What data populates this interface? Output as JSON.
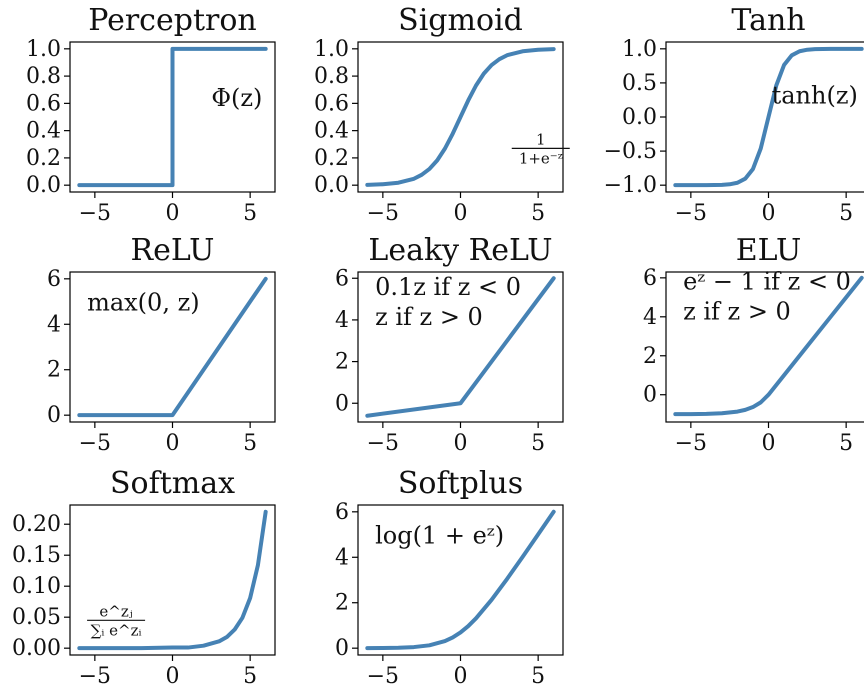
{
  "style": {
    "line_color": "#4682b4",
    "axis_color": "#000000",
    "background": "#ffffff"
  },
  "chart_data": [
    {
      "type": "line",
      "title": "Perceptron",
      "x": [
        -6,
        0,
        0,
        6
      ],
      "y": [
        0,
        0,
        1,
        1
      ],
      "xlim": [
        -6.6,
        6.6
      ],
      "ylim": [
        -0.05,
        1.05
      ],
      "xticks": [
        -5,
        0,
        5
      ],
      "xtick_labels": [
        "−5",
        "0",
        "5"
      ],
      "yticks": [
        0,
        0.2,
        0.4,
        0.6,
        0.8,
        1.0
      ],
      "ytick_labels": [
        "0.0",
        "0.2",
        "0.4",
        "0.6",
        "0.8",
        "1.0"
      ],
      "annotation": {
        "text": "Φ(z)",
        "x": 2.5,
        "y": 0.58
      },
      "grid": false,
      "legend": "none"
    },
    {
      "type": "line",
      "title": "Sigmoid",
      "x": [
        -6,
        -5,
        -4,
        -3,
        -2.5,
        -2,
        -1.5,
        -1,
        -0.5,
        0,
        0.5,
        1,
        1.5,
        2,
        2.5,
        3,
        4,
        5,
        6
      ],
      "y": [
        0.002,
        0.007,
        0.018,
        0.047,
        0.076,
        0.119,
        0.182,
        0.269,
        0.378,
        0.5,
        0.622,
        0.731,
        0.818,
        0.881,
        0.924,
        0.953,
        0.982,
        0.993,
        0.998
      ],
      "xlim": [
        -6.6,
        6.6
      ],
      "ylim": [
        -0.05,
        1.05
      ],
      "xticks": [
        -5,
        0,
        5
      ],
      "xtick_labels": [
        "−5",
        "0",
        "5"
      ],
      "yticks": [
        0,
        0.2,
        0.4,
        0.6,
        0.8,
        1.0
      ],
      "ytick_labels": [
        "0.0",
        "0.2",
        "0.4",
        "0.6",
        "0.8",
        "1.0"
      ],
      "annotation": {
        "numerator": "1",
        "denominator": "1+e⁻ᶻ",
        "x": 3.3,
        "y": 0.27
      },
      "grid": false,
      "legend": "none"
    },
    {
      "type": "line",
      "title": "Tanh",
      "x": [
        -6,
        -5,
        -4,
        -3,
        -2.5,
        -2,
        -1.5,
        -1,
        -0.5,
        0,
        0.5,
        1,
        1.5,
        2,
        2.5,
        3,
        4,
        5,
        6
      ],
      "y": [
        -1.0,
        -1.0,
        -0.999,
        -0.995,
        -0.987,
        -0.964,
        -0.905,
        -0.762,
        -0.462,
        0,
        0.462,
        0.762,
        0.905,
        0.964,
        0.987,
        0.995,
        0.999,
        1.0,
        1.0
      ],
      "xlim": [
        -6.6,
        6.6
      ],
      "ylim": [
        -1.1,
        1.1
      ],
      "xticks": [
        -5,
        0,
        5
      ],
      "xtick_labels": [
        "−5",
        "0",
        "5"
      ],
      "yticks": [
        -1.0,
        -0.5,
        0,
        0.5,
        1.0
      ],
      "ytick_labels": [
        "−1.0",
        "−0.5",
        "0.0",
        "0.5",
        "1.0"
      ],
      "annotation": {
        "text": "tanh(z)",
        "x": 0.2,
        "y": 0.2
      },
      "grid": false,
      "legend": "none"
    },
    {
      "type": "line",
      "title": "ReLU",
      "x": [
        -6,
        0,
        6
      ],
      "y": [
        0,
        0,
        6
      ],
      "xlim": [
        -6.6,
        6.6
      ],
      "ylim": [
        -0.3,
        6.3
      ],
      "xticks": [
        -5,
        0,
        5
      ],
      "xtick_labels": [
        "−5",
        "0",
        "5"
      ],
      "yticks": [
        0,
        2,
        4,
        6
      ],
      "ytick_labels": [
        "0",
        "2",
        "4",
        "6"
      ],
      "annotation": {
        "text": "max(0, z)",
        "x": -5.5,
        "y": 4.6
      },
      "grid": false,
      "legend": "none"
    },
    {
      "type": "line",
      "title": "Leaky ReLU",
      "x": [
        -6,
        0,
        6
      ],
      "y": [
        -0.6,
        0,
        6
      ],
      "xlim": [
        -6.6,
        6.6
      ],
      "ylim": [
        -0.9,
        6.3
      ],
      "xticks": [
        -5,
        0,
        5
      ],
      "xtick_labels": [
        "−5",
        "0",
        "5"
      ],
      "yticks": [
        0,
        2,
        4,
        6
      ],
      "ytick_labels": [
        "0",
        "2",
        "4",
        "6"
      ],
      "annotation": {
        "lines": [
          "0.1z if z < 0",
          "z if z > 0"
        ],
        "x": -5.5,
        "y": 5.2
      },
      "grid": false,
      "legend": "none"
    },
    {
      "type": "line",
      "title": "ELU",
      "x": [
        -6,
        -5,
        -4,
        -3,
        -2,
        -1.5,
        -1,
        -0.5,
        0,
        1,
        2,
        3,
        4,
        5,
        6
      ],
      "y": [
        -0.998,
        -0.993,
        -0.982,
        -0.95,
        -0.865,
        -0.777,
        -0.632,
        -0.393,
        0,
        1,
        2,
        3,
        4,
        5,
        6
      ],
      "xlim": [
        -6.6,
        6.6
      ],
      "ylim": [
        -1.4,
        6.3
      ],
      "xticks": [
        -5,
        0,
        5
      ],
      "xtick_labels": [
        "−5",
        "0",
        "5"
      ],
      "yticks": [
        0,
        2,
        4,
        6
      ],
      "ytick_labels": [
        "0",
        "2",
        "4",
        "6"
      ],
      "annotation": {
        "lines": [
          "eᶻ − 1 if z < 0",
          "z if z > 0"
        ],
        "x": -5.5,
        "y": 5.4
      },
      "grid": false,
      "legend": "none"
    },
    {
      "type": "line",
      "title": "Softmax",
      "x": [
        -6,
        -4,
        -2,
        0,
        1,
        2,
        3,
        3.5,
        4,
        4.5,
        5,
        5.5,
        6
      ],
      "y": [
        0.0,
        0.0,
        0.0,
        0.001,
        0.001,
        0.004,
        0.011,
        0.018,
        0.03,
        0.049,
        0.081,
        0.134,
        0.22
      ],
      "xlim": [
        -6.6,
        6.6
      ],
      "ylim": [
        -0.011,
        0.231
      ],
      "xticks": [
        -5,
        0,
        5
      ],
      "xtick_labels": [
        "−5",
        "0",
        "5"
      ],
      "yticks": [
        0,
        0.05,
        0.1,
        0.15,
        0.2
      ],
      "ytick_labels": [
        "0.00",
        "0.05",
        "0.10",
        "0.15",
        "0.20"
      ],
      "annotation": {
        "numerator": "e^zⱼ",
        "denominator": "∑ᵢ e^zᵢ",
        "x": -5.5,
        "y": 0.045
      },
      "grid": false,
      "legend": "none"
    },
    {
      "type": "line",
      "title": "Softplus",
      "x": [
        -6,
        -5,
        -4,
        -3,
        -2,
        -1,
        -0.5,
        0,
        0.5,
        1,
        2,
        3,
        4,
        5,
        6
      ],
      "y": [
        0.002,
        0.007,
        0.018,
        0.049,
        0.127,
        0.313,
        0.474,
        0.693,
        0.974,
        1.313,
        2.127,
        3.049,
        4.018,
        5.007,
        6.002
      ],
      "xlim": [
        -6.6,
        6.6
      ],
      "ylim": [
        -0.3,
        6.3
      ],
      "xticks": [
        -5,
        0,
        5
      ],
      "xtick_labels": [
        "−5",
        "0",
        "5"
      ],
      "yticks": [
        0,
        2,
        4,
        6
      ],
      "ytick_labels": [
        "0",
        "2",
        "4",
        "6"
      ],
      "annotation": {
        "text": "log(1 + eᶻ)",
        "x": -5.5,
        "y": 4.6
      },
      "grid": false,
      "legend": "none"
    }
  ]
}
